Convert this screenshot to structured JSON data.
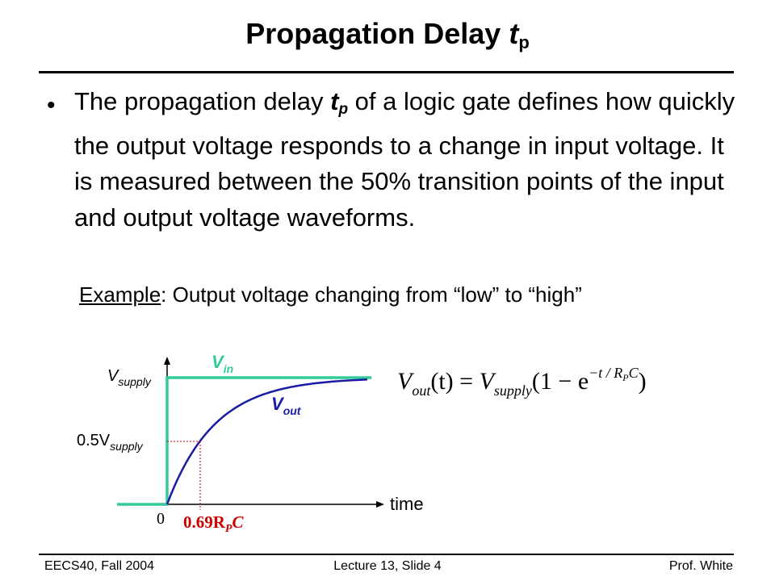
{
  "title": {
    "main": "Propagation Delay ",
    "symbol": "t",
    "sub": "p"
  },
  "bullet": {
    "marker": "•",
    "part1": "The propagation delay ",
    "symbol": "t",
    "sub": "p",
    "part2": " of a logic gate defines how quickly the output voltage responds to a change in input voltage.  It is measured between the 50% transition points of the input and output voltage waveforms."
  },
  "example": {
    "label": "Example",
    "text": ": Output voltage changing from “low” to “high”"
  },
  "graph": {
    "vin_label": "V",
    "vin_sub": "in",
    "vout_label": "V",
    "vout_sub": "out",
    "vsupply_label": "V",
    "vsupply_sub": "supply",
    "half_prefix": "0.5V",
    "half_sub": "supply",
    "zero": "0",
    "time": "time",
    "delay_label": "0.69R",
    "delay_sub": "P",
    "delay_tail": "C",
    "equation": {
      "lhs": "V",
      "lhs_sub": "out",
      "arg": "(t) = ",
      "rhs": "V",
      "rhs_sub": "supply",
      "paren_open": "(1 − e",
      "exponent": "−t / R",
      "exp_sub": "P",
      "exp_tail": "C",
      "paren_close": ")"
    },
    "colors": {
      "vin": "#33cc99",
      "vout": "#1a1aa6",
      "delay": "#cc0000",
      "axes": "#000000"
    }
  },
  "footer": {
    "left": "EECS40, Fall 2004",
    "center": "Lecture 13, Slide 4",
    "right": "Prof. White"
  }
}
